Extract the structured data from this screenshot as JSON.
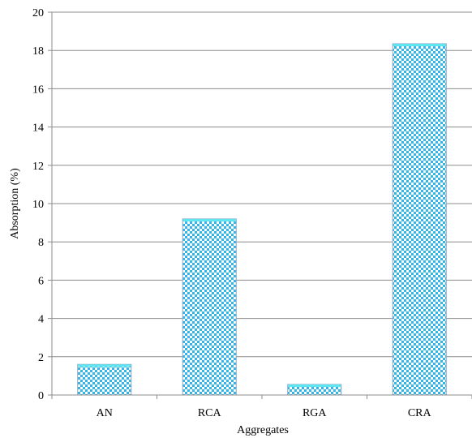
{
  "chart_data": {
    "type": "bar",
    "title": "",
    "xlabel": "Aggregates",
    "ylabel": "Absorption (%)",
    "categories": [
      "AN",
      "RCA",
      "RGA",
      "CRA"
    ],
    "values": [
      1.6,
      9.2,
      0.55,
      18.35
    ],
    "ylim": [
      0,
      20
    ],
    "yticks": [
      0,
      2,
      4,
      6,
      8,
      10,
      12,
      14,
      16,
      18,
      20
    ],
    "grid": true,
    "legend": "none",
    "bar_color": "#35b4e8",
    "bar_pattern_color": "#ffffff",
    "bar_top_color": "#5ee6f0"
  }
}
